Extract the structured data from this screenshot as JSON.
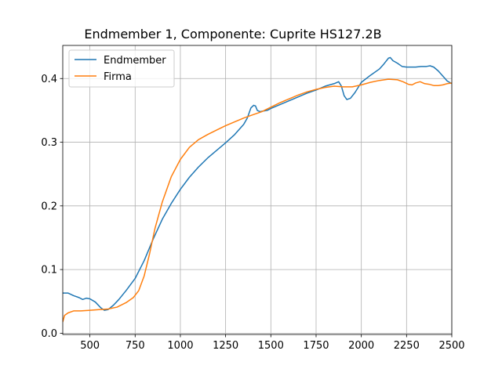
{
  "chart_data": {
    "type": "line",
    "title": "Endmember 1, Componente: Cuprite HS127.2B",
    "xlabel": "",
    "ylabel": "",
    "xlim": [
      350,
      2500
    ],
    "ylim": [
      -0.002,
      0.452
    ],
    "x_ticks": [
      500,
      750,
      1000,
      1250,
      1500,
      1750,
      2000,
      2250,
      2500
    ],
    "y_ticks": [
      0.0,
      0.1,
      0.2,
      0.3,
      0.4
    ],
    "x_tick_labels": [
      "500",
      "750",
      "1000",
      "1250",
      "1500",
      "1750",
      "2000",
      "2250",
      "2500"
    ],
    "y_tick_labels": [
      "0.0",
      "0.1",
      "0.2",
      "0.3",
      "0.4"
    ],
    "grid": true,
    "legend_position": "top-left",
    "series": [
      {
        "name": "Endmember",
        "color": "#1f77b4",
        "points": [
          [
            350,
            0.063
          ],
          [
            380,
            0.063
          ],
          [
            410,
            0.059
          ],
          [
            440,
            0.056
          ],
          [
            460,
            0.053
          ],
          [
            480,
            0.055
          ],
          [
            500,
            0.054
          ],
          [
            530,
            0.049
          ],
          [
            560,
            0.04
          ],
          [
            580,
            0.036
          ],
          [
            600,
            0.037
          ],
          [
            630,
            0.044
          ],
          [
            660,
            0.053
          ],
          [
            700,
            0.067
          ],
          [
            750,
            0.086
          ],
          [
            800,
            0.114
          ],
          [
            850,
            0.148
          ],
          [
            900,
            0.179
          ],
          [
            950,
            0.204
          ],
          [
            1000,
            0.226
          ],
          [
            1050,
            0.245
          ],
          [
            1100,
            0.261
          ],
          [
            1150,
            0.275
          ],
          [
            1200,
            0.287
          ],
          [
            1250,
            0.299
          ],
          [
            1300,
            0.312
          ],
          [
            1350,
            0.328
          ],
          [
            1370,
            0.338
          ],
          [
            1390,
            0.354
          ],
          [
            1405,
            0.358
          ],
          [
            1415,
            0.357
          ],
          [
            1425,
            0.35
          ],
          [
            1440,
            0.348
          ],
          [
            1480,
            0.35
          ],
          [
            1500,
            0.353
          ],
          [
            1550,
            0.359
          ],
          [
            1600,
            0.365
          ],
          [
            1650,
            0.371
          ],
          [
            1700,
            0.377
          ],
          [
            1750,
            0.382
          ],
          [
            1800,
            0.388
          ],
          [
            1850,
            0.392
          ],
          [
            1875,
            0.395
          ],
          [
            1890,
            0.388
          ],
          [
            1905,
            0.373
          ],
          [
            1920,
            0.367
          ],
          [
            1940,
            0.369
          ],
          [
            1965,
            0.378
          ],
          [
            2000,
            0.394
          ],
          [
            2050,
            0.405
          ],
          [
            2100,
            0.415
          ],
          [
            2125,
            0.423
          ],
          [
            2150,
            0.432
          ],
          [
            2160,
            0.433
          ],
          [
            2175,
            0.428
          ],
          [
            2200,
            0.424
          ],
          [
            2225,
            0.419
          ],
          [
            2250,
            0.418
          ],
          [
            2300,
            0.418
          ],
          [
            2330,
            0.419
          ],
          [
            2360,
            0.419
          ],
          [
            2380,
            0.42
          ],
          [
            2400,
            0.418
          ],
          [
            2425,
            0.412
          ],
          [
            2450,
            0.404
          ],
          [
            2475,
            0.396
          ],
          [
            2500,
            0.392
          ]
        ]
      },
      {
        "name": "Firma",
        "color": "#ff7f0e",
        "points": [
          [
            350,
            0.018
          ],
          [
            360,
            0.028
          ],
          [
            380,
            0.032
          ],
          [
            410,
            0.035
          ],
          [
            450,
            0.035
          ],
          [
            500,
            0.036
          ],
          [
            550,
            0.037
          ],
          [
            600,
            0.038
          ],
          [
            650,
            0.041
          ],
          [
            700,
            0.048
          ],
          [
            740,
            0.056
          ],
          [
            770,
            0.067
          ],
          [
            800,
            0.09
          ],
          [
            830,
            0.125
          ],
          [
            860,
            0.165
          ],
          [
            900,
            0.206
          ],
          [
            950,
            0.246
          ],
          [
            1000,
            0.273
          ],
          [
            1050,
            0.292
          ],
          [
            1100,
            0.304
          ],
          [
            1150,
            0.312
          ],
          [
            1200,
            0.319
          ],
          [
            1250,
            0.326
          ],
          [
            1300,
            0.332
          ],
          [
            1350,
            0.338
          ],
          [
            1400,
            0.343
          ],
          [
            1450,
            0.348
          ],
          [
            1500,
            0.355
          ],
          [
            1550,
            0.362
          ],
          [
            1600,
            0.368
          ],
          [
            1650,
            0.374
          ],
          [
            1700,
            0.379
          ],
          [
            1750,
            0.383
          ],
          [
            1800,
            0.386
          ],
          [
            1850,
            0.388
          ],
          [
            1900,
            0.387
          ],
          [
            1950,
            0.387
          ],
          [
            2000,
            0.39
          ],
          [
            2050,
            0.394
          ],
          [
            2100,
            0.397
          ],
          [
            2150,
            0.399
          ],
          [
            2200,
            0.398
          ],
          [
            2230,
            0.395
          ],
          [
            2260,
            0.391
          ],
          [
            2280,
            0.39
          ],
          [
            2300,
            0.393
          ],
          [
            2325,
            0.395
          ],
          [
            2350,
            0.392
          ],
          [
            2375,
            0.391
          ],
          [
            2400,
            0.389
          ],
          [
            2425,
            0.389
          ],
          [
            2450,
            0.39
          ],
          [
            2475,
            0.392
          ],
          [
            2500,
            0.393
          ]
        ]
      }
    ]
  }
}
